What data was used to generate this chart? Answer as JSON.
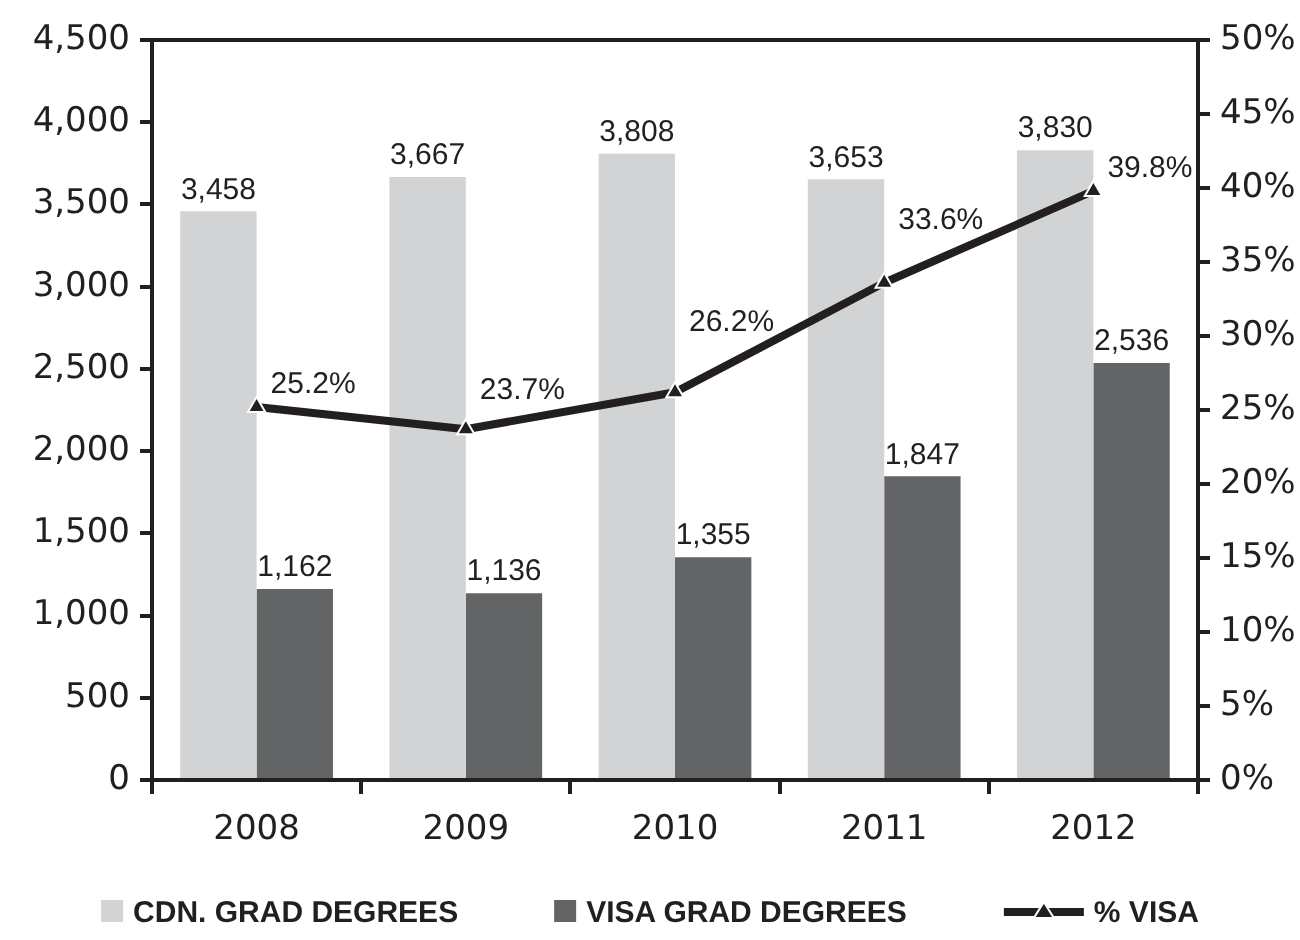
{
  "chart_data": {
    "type": "bar",
    "categories": [
      "2008",
      "2009",
      "2010",
      "2011",
      "2012"
    ],
    "series": [
      {
        "name": "CDN. GRAD DEGREES",
        "color": "#d1d3d4",
        "values": [
          3458,
          3667,
          3808,
          3653,
          3830
        ],
        "value_labels": [
          "3,458",
          "3,667",
          "3,808",
          "3,653",
          "3,830"
        ]
      },
      {
        "name": "VISA GRAD DEGREES",
        "color": "#636466",
        "values": [
          1162,
          1136,
          1355,
          1847,
          2536
        ],
        "value_labels": [
          "1,162",
          "1,136",
          "1,355",
          "1,847",
          "2,536"
        ]
      },
      {
        "name": "% VISA",
        "type": "line",
        "axis": "y2",
        "color": "#231f20",
        "values": [
          25.2,
          23.7,
          26.2,
          33.6,
          39.8
        ],
        "value_labels": [
          "25.2%",
          "23.7%",
          "26.2%",
          "33.6%",
          "39.8%"
        ]
      }
    ],
    "ylim": [
      0,
      4500
    ],
    "yticks": [
      0,
      500,
      {
        "value": 1000,
        "label": "1,000"
      },
      {
        "value": 1500,
        "label": "1,500"
      },
      {
        "value": 2000,
        "label": "2,000"
      },
      {
        "value": 2500,
        "label": "2,500"
      },
      {
        "value": 3000,
        "label": "3,000"
      },
      {
        "value": 3500,
        "label": "3,500"
      },
      {
        "value": 4000,
        "label": "4,000"
      },
      {
        "value": 4500,
        "label": "4,500"
      }
    ],
    "y2lim": [
      0,
      50
    ],
    "y2ticks": [
      {
        "value": 0,
        "label": "0%"
      },
      {
        "value": 5,
        "label": "5%"
      },
      {
        "value": 10,
        "label": "10%"
      },
      {
        "value": 15,
        "label": "15%"
      },
      {
        "value": 20,
        "label": "20%"
      },
      {
        "value": 25,
        "label": "25%"
      },
      {
        "value": 30,
        "label": "30%"
      },
      {
        "value": 35,
        "label": "35%"
      },
      {
        "value": 40,
        "label": "40%"
      },
      {
        "value": 45,
        "label": "45%"
      },
      {
        "value": 50,
        "label": "50%"
      }
    ],
    "marker": "triangle",
    "grid": false,
    "legend": "bottom"
  }
}
